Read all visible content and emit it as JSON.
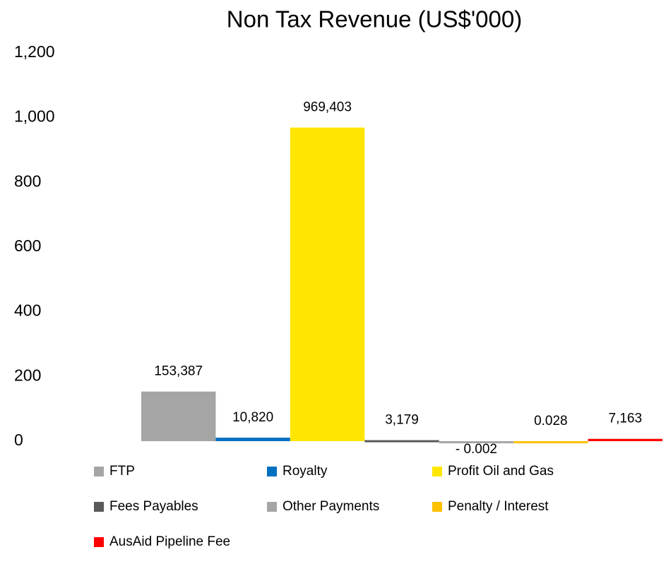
{
  "chart_data": {
    "type": "bar",
    "title": "Non Tax Revenue (US$'000)",
    "ylim": [
      0,
      1200
    ],
    "yticks": [
      0,
      200,
      400,
      600,
      800,
      {
        "value": 1000,
        "label": "1,000"
      },
      {
        "value": 1200,
        "label": "1,200"
      }
    ],
    "grid": false,
    "series": [
      {
        "name": "FTP",
        "color": "#a5a5a5",
        "values": [
          153.387
        ],
        "value_labels": [
          "153,387"
        ]
      },
      {
        "name": "Royalty",
        "color": "#0070c0",
        "values": [
          10.82
        ],
        "value_labels": [
          "10,820"
        ]
      },
      {
        "name": "Profit Oil and Gas",
        "color": "#ffe600",
        "values": [
          969.403
        ],
        "value_labels": [
          "969,403"
        ]
      },
      {
        "name": "Fees Payables",
        "color": "#595959",
        "values": [
          3.179
        ],
        "value_labels": [
          "3,179"
        ]
      },
      {
        "name": "Other Payments",
        "color": "#a5a5a5",
        "values": [
          -0.002
        ],
        "value_labels": [
          "- 0.002"
        ]
      },
      {
        "name": "Penalty / Interest",
        "color": "#ffc000",
        "values": [
          0.028
        ],
        "value_labels": [
          "0.028"
        ]
      },
      {
        "name": "AusAid Pipeline Fee",
        "color": "#ff0000",
        "values": [
          7.163
        ],
        "value_labels": [
          "7,163"
        ]
      }
    ]
  }
}
